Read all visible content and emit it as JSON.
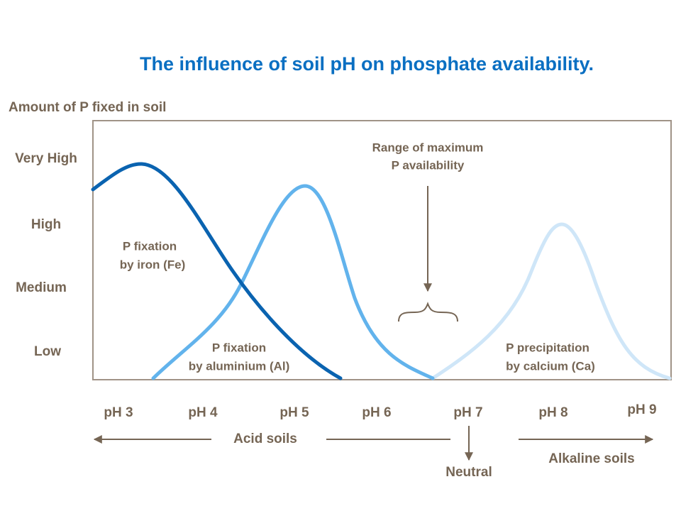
{
  "title": "The influence of soil pH on phosphate  availability.",
  "y_axis": {
    "title": "Amount of P fixed in soil",
    "levels": [
      "Very High",
      "High",
      "Medium",
      "Low"
    ]
  },
  "x_axis": {
    "labels": [
      "pH 3",
      "pH 4",
      "pH 5",
      "pH 6",
      "pH 7",
      "pH 8",
      "pH 9"
    ]
  },
  "range_note": {
    "lines": [
      "Range of maximum",
      "P availability"
    ]
  },
  "curves": [
    {
      "lines": [
        "P fixation",
        "by iron (Fe)"
      ]
    },
    {
      "lines": [
        "P fixation",
        "by aluminium (Al)"
      ]
    },
    {
      "lines": [
        "P precipitation",
        "by calcium (Ca)"
      ]
    }
  ],
  "soil_types": {
    "acid": "Acid soils",
    "neutral": "Neutral",
    "alkaline": "Alkaline soils"
  }
}
